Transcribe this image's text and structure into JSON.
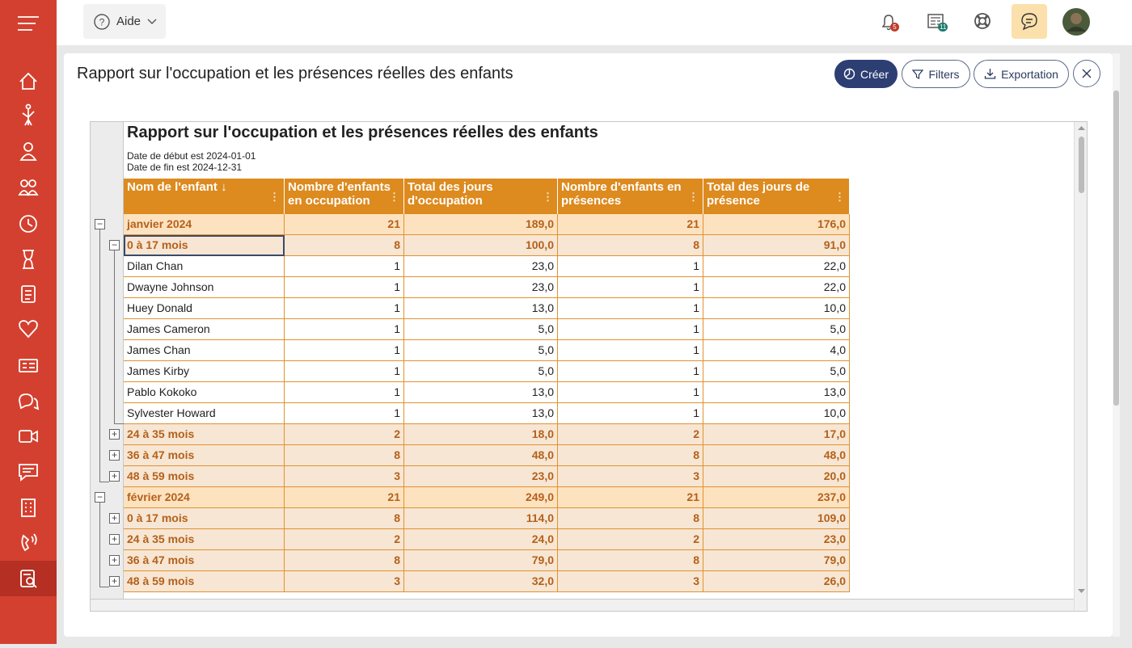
{
  "topbar": {
    "help": "Aide",
    "notification_badge": "5",
    "news_badge": "11"
  },
  "page": {
    "title": "Rapport sur l'occupation et les présences réelles des enfants",
    "create": "Créer",
    "filters": "Filters",
    "export": "Exportation"
  },
  "report": {
    "title": "Rapport sur l'occupation et les présences réelles des enfants",
    "start": "Date de début est 2024-01-01",
    "end": "Date de fin est 2024-12-31",
    "columns": [
      "Nom de l'enfant ↓",
      "Nombre d'enfants en occupation",
      "Total des jours d'occupation",
      "Nombre d'enfants en présences",
      "Total des jours de présence"
    ],
    "months": [
      {
        "name": "janvier 2024",
        "values": [
          "21",
          "189,0",
          "21",
          "176,0"
        ],
        "groups": [
          {
            "name": "0 à 17 mois",
            "values": [
              "8",
              "100,0",
              "8",
              "91,0"
            ],
            "children": [
              {
                "name": "Dilan Chan",
                "values": [
                  "1",
                  "23,0",
                  "1",
                  "22,0"
                ]
              },
              {
                "name": "Dwayne Johnson",
                "values": [
                  "1",
                  "23,0",
                  "1",
                  "22,0"
                ]
              },
              {
                "name": "Huey Donald",
                "values": [
                  "1",
                  "13,0",
                  "1",
                  "10,0"
                ]
              },
              {
                "name": "James Cameron",
                "values": [
                  "1",
                  "5,0",
                  "1",
                  "5,0"
                ]
              },
              {
                "name": "James Chan",
                "values": [
                  "1",
                  "5,0",
                  "1",
                  "4,0"
                ]
              },
              {
                "name": "James Kirby",
                "values": [
                  "1",
                  "5,0",
                  "1",
                  "5,0"
                ]
              },
              {
                "name": "Pablo Kokoko",
                "values": [
                  "1",
                  "13,0",
                  "1",
                  "13,0"
                ]
              },
              {
                "name": "Sylvester Howard",
                "values": [
                  "1",
                  "13,0",
                  "1",
                  "10,0"
                ]
              }
            ]
          },
          {
            "name": "24 à 35 mois",
            "values": [
              "2",
              "18,0",
              "2",
              "17,0"
            ]
          },
          {
            "name": "36 à 47 mois",
            "values": [
              "8",
              "48,0",
              "8",
              "48,0"
            ]
          },
          {
            "name": "48 à 59 mois",
            "values": [
              "3",
              "23,0",
              "3",
              "20,0"
            ]
          }
        ]
      },
      {
        "name": "février 2024",
        "values": [
          "21",
          "249,0",
          "21",
          "237,0"
        ],
        "groups": [
          {
            "name": "0 à 17 mois",
            "values": [
              "8",
              "114,0",
              "8",
              "109,0"
            ]
          },
          {
            "name": "24 à 35 mois",
            "values": [
              "2",
              "24,0",
              "2",
              "23,0"
            ]
          },
          {
            "name": "36 à 47 mois",
            "values": [
              "8",
              "79,0",
              "8",
              "79,0"
            ]
          },
          {
            "name": "48 à 59 mois",
            "values": [
              "3",
              "32,0",
              "3",
              "26,0"
            ]
          }
        ]
      }
    ]
  }
}
